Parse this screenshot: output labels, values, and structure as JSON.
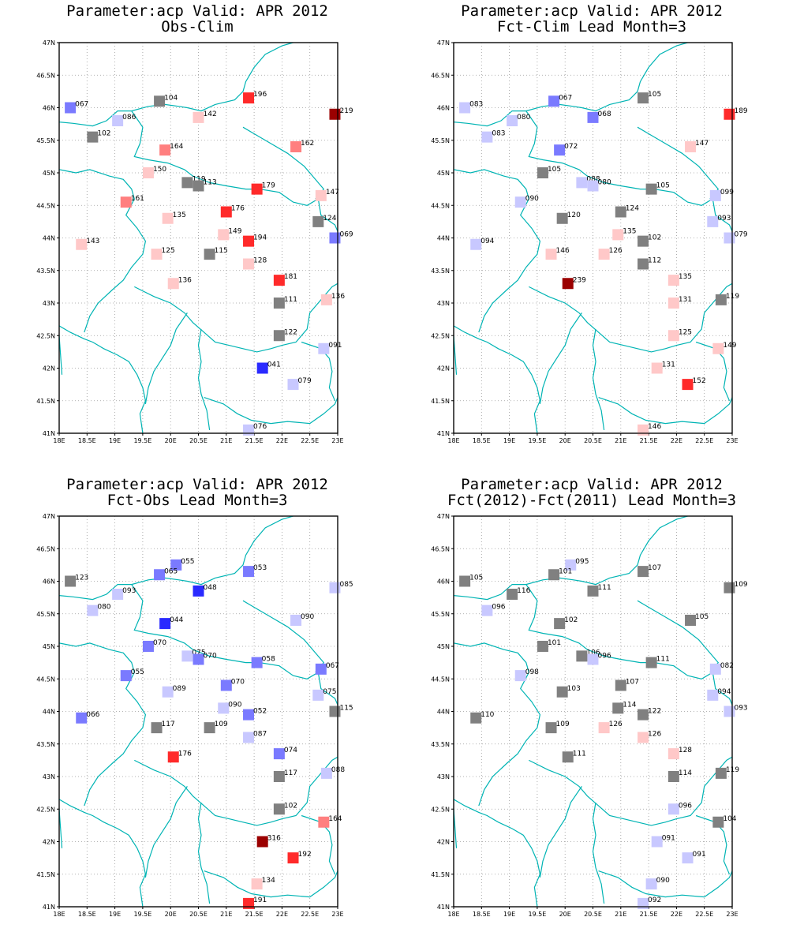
{
  "map_axes": {
    "lon_labels": [
      "18E",
      "18.5E",
      "19E",
      "19.5E",
      "20E",
      "20.5E",
      "21E",
      "21.5E",
      "22E",
      "22.5E",
      "23E"
    ],
    "lat_labels": [
      "41N",
      "41.5N",
      "42N",
      "42.5N",
      "43N",
      "43.5N",
      "44N",
      "44.5N",
      "45N",
      "45.5N",
      "46N",
      "46.5N",
      "47N"
    ],
    "lon_range": [
      18,
      23
    ],
    "lat_range": [
      41,
      47
    ],
    "grid": "dotted"
  },
  "colors": {
    "very_high": "#9b0000",
    "high": "#ff2a2a",
    "mid_high": "#ff7f7f",
    "low_high": "#ffc8c8",
    "neutral": "#808080",
    "low_low": "#c8c8ff",
    "mid_low": "#7a7aff",
    "low": "#2a2aff",
    "coast": "#00b4b4"
  },
  "panels": [
    {
      "title1": "Parameter:acp Valid: APR 2012",
      "title2": "Obs-Clim",
      "stations": [
        {
          "lon": 18.2,
          "lat": 46.0,
          "label": "067",
          "c": "mid_low"
        },
        {
          "lon": 19.8,
          "lat": 46.1,
          "label": "104",
          "c": "neutral"
        },
        {
          "lon": 21.4,
          "lat": 46.15,
          "label": "196",
          "c": "high"
        },
        {
          "lon": 22.95,
          "lat": 45.9,
          "label": "219",
          "c": "very_high"
        },
        {
          "lon": 19.05,
          "lat": 45.8,
          "label": "086",
          "c": "low_low"
        },
        {
          "lon": 20.5,
          "lat": 45.85,
          "label": "142",
          "c": "low_high"
        },
        {
          "lon": 18.6,
          "lat": 45.55,
          "label": "102",
          "c": "neutral"
        },
        {
          "lon": 19.9,
          "lat": 45.35,
          "label": "164",
          "c": "mid_high"
        },
        {
          "lon": 22.25,
          "lat": 45.4,
          "label": "162",
          "c": "mid_high"
        },
        {
          "lon": 19.6,
          "lat": 45.0,
          "label": "150",
          "c": "low_high"
        },
        {
          "lon": 20.3,
          "lat": 44.85,
          "label": "119",
          "c": "neutral"
        },
        {
          "lon": 20.5,
          "lat": 44.8,
          "label": "113",
          "c": "neutral"
        },
        {
          "lon": 21.55,
          "lat": 44.75,
          "label": "179",
          "c": "high"
        },
        {
          "lon": 22.7,
          "lat": 44.65,
          "label": "147",
          "c": "low_high"
        },
        {
          "lon": 19.2,
          "lat": 44.55,
          "label": "161",
          "c": "mid_high"
        },
        {
          "lon": 19.95,
          "lat": 44.3,
          "label": "135",
          "c": "low_high"
        },
        {
          "lon": 21.0,
          "lat": 44.4,
          "label": "176",
          "c": "high"
        },
        {
          "lon": 22.65,
          "lat": 44.25,
          "label": "124",
          "c": "neutral"
        },
        {
          "lon": 22.95,
          "lat": 44.0,
          "label": "069",
          "c": "mid_low"
        },
        {
          "lon": 20.95,
          "lat": 44.05,
          "label": "149",
          "c": "low_high"
        },
        {
          "lon": 21.4,
          "lat": 43.95,
          "label": "194",
          "c": "high"
        },
        {
          "lon": 18.4,
          "lat": 43.9,
          "label": "143",
          "c": "low_high"
        },
        {
          "lon": 19.75,
          "lat": 43.75,
          "label": "125",
          "c": "low_high"
        },
        {
          "lon": 20.7,
          "lat": 43.75,
          "label": "115",
          "c": "neutral"
        },
        {
          "lon": 21.4,
          "lat": 43.6,
          "label": "128",
          "c": "low_high"
        },
        {
          "lon": 20.05,
          "lat": 43.3,
          "label": "136",
          "c": "low_high"
        },
        {
          "lon": 21.95,
          "lat": 43.35,
          "label": "181",
          "c": "high"
        },
        {
          "lon": 21.95,
          "lat": 43.0,
          "label": "111",
          "c": "neutral"
        },
        {
          "lon": 22.8,
          "lat": 43.05,
          "label": "136",
          "c": "low_high"
        },
        {
          "lon": 21.95,
          "lat": 42.5,
          "label": "122",
          "c": "neutral"
        },
        {
          "lon": 22.75,
          "lat": 42.3,
          "label": "091",
          "c": "low_low"
        },
        {
          "lon": 21.65,
          "lat": 42.0,
          "label": "041",
          "c": "low"
        },
        {
          "lon": 22.2,
          "lat": 41.75,
          "label": "079",
          "c": "low_low"
        },
        {
          "lon": 21.4,
          "lat": 41.05,
          "label": "076",
          "c": "low_low"
        }
      ]
    },
    {
      "title1": "Parameter:acp Valid: APR 2012",
      "title2": "Fct-Clim Lead Month=3",
      "stations": [
        {
          "lon": 18.2,
          "lat": 46.0,
          "label": "083",
          "c": "low_low"
        },
        {
          "lon": 19.8,
          "lat": 46.1,
          "label": "067",
          "c": "mid_low"
        },
        {
          "lon": 21.4,
          "lat": 46.15,
          "label": "105",
          "c": "neutral"
        },
        {
          "lon": 22.95,
          "lat": 45.9,
          "label": "189",
          "c": "high"
        },
        {
          "lon": 19.05,
          "lat": 45.8,
          "label": "080",
          "c": "low_low"
        },
        {
          "lon": 20.5,
          "lat": 45.85,
          "label": "068",
          "c": "mid_low"
        },
        {
          "lon": 18.6,
          "lat": 45.55,
          "label": "083",
          "c": "low_low"
        },
        {
          "lon": 19.9,
          "lat": 45.35,
          "label": "072",
          "c": "mid_low"
        },
        {
          "lon": 22.25,
          "lat": 45.4,
          "label": "147",
          "c": "low_high"
        },
        {
          "lon": 19.6,
          "lat": 45.0,
          "label": "105",
          "c": "neutral"
        },
        {
          "lon": 20.3,
          "lat": 44.85,
          "label": "088",
          "c": "low_low"
        },
        {
          "lon": 20.5,
          "lat": 44.8,
          "label": "080",
          "c": "low_low"
        },
        {
          "lon": 21.55,
          "lat": 44.75,
          "label": "105",
          "c": "neutral"
        },
        {
          "lon": 22.7,
          "lat": 44.65,
          "label": "099",
          "c": "low_low"
        },
        {
          "lon": 19.2,
          "lat": 44.55,
          "label": "090",
          "c": "low_low"
        },
        {
          "lon": 19.95,
          "lat": 44.3,
          "label": "120",
          "c": "neutral"
        },
        {
          "lon": 21.0,
          "lat": 44.4,
          "label": "124",
          "c": "neutral"
        },
        {
          "lon": 22.65,
          "lat": 44.25,
          "label": "093",
          "c": "low_low"
        },
        {
          "lon": 22.95,
          "lat": 44.0,
          "label": "079",
          "c": "low_low"
        },
        {
          "lon": 20.95,
          "lat": 44.05,
          "label": "135",
          "c": "low_high"
        },
        {
          "lon": 21.4,
          "lat": 43.95,
          "label": "102",
          "c": "neutral"
        },
        {
          "lon": 18.4,
          "lat": 43.9,
          "label": "094",
          "c": "low_low"
        },
        {
          "lon": 19.75,
          "lat": 43.75,
          "label": "146",
          "c": "low_high"
        },
        {
          "lon": 20.7,
          "lat": 43.75,
          "label": "126",
          "c": "low_high"
        },
        {
          "lon": 21.4,
          "lat": 43.6,
          "label": "112",
          "c": "neutral"
        },
        {
          "lon": 20.05,
          "lat": 43.3,
          "label": "239",
          "c": "very_high"
        },
        {
          "lon": 21.95,
          "lat": 43.35,
          "label": "135",
          "c": "low_high"
        },
        {
          "lon": 21.95,
          "lat": 43.0,
          "label": "131",
          "c": "low_high"
        },
        {
          "lon": 22.8,
          "lat": 43.05,
          "label": "119",
          "c": "neutral"
        },
        {
          "lon": 21.95,
          "lat": 42.5,
          "label": "125",
          "c": "low_high"
        },
        {
          "lon": 22.75,
          "lat": 42.3,
          "label": "149",
          "c": "low_high"
        },
        {
          "lon": 21.65,
          "lat": 42.0,
          "label": "131",
          "c": "low_high"
        },
        {
          "lon": 22.2,
          "lat": 41.75,
          "label": "152",
          "c": "high"
        },
        {
          "lon": 21.4,
          "lat": 41.05,
          "label": "146",
          "c": "low_high"
        }
      ]
    },
    {
      "title1": "Parameter:acp Valid: APR 2012",
      "title2": "Fct-Obs Lead Month=3",
      "stations": [
        {
          "lon": 18.2,
          "lat": 46.0,
          "label": "123",
          "c": "neutral"
        },
        {
          "lon": 20.1,
          "lat": 46.25,
          "label": "055",
          "c": "mid_low"
        },
        {
          "lon": 19.8,
          "lat": 46.1,
          "label": "065",
          "c": "mid_low"
        },
        {
          "lon": 21.4,
          "lat": 46.15,
          "label": "053",
          "c": "mid_low"
        },
        {
          "lon": 22.95,
          "lat": 45.9,
          "label": "085",
          "c": "low_low"
        },
        {
          "lon": 19.05,
          "lat": 45.8,
          "label": "093",
          "c": "low_low"
        },
        {
          "lon": 20.5,
          "lat": 45.85,
          "label": "048",
          "c": "low"
        },
        {
          "lon": 18.6,
          "lat": 45.55,
          "label": "080",
          "c": "low_low"
        },
        {
          "lon": 19.9,
          "lat": 45.35,
          "label": "044",
          "c": "low"
        },
        {
          "lon": 22.25,
          "lat": 45.4,
          "label": "090",
          "c": "low_low"
        },
        {
          "lon": 19.6,
          "lat": 45.0,
          "label": "070",
          "c": "mid_low"
        },
        {
          "lon": 20.3,
          "lat": 44.85,
          "label": "075",
          "c": "low_low"
        },
        {
          "lon": 20.5,
          "lat": 44.8,
          "label": "070",
          "c": "mid_low"
        },
        {
          "lon": 21.55,
          "lat": 44.75,
          "label": "058",
          "c": "mid_low"
        },
        {
          "lon": 22.7,
          "lat": 44.65,
          "label": "067",
          "c": "mid_low"
        },
        {
          "lon": 19.2,
          "lat": 44.55,
          "label": "055",
          "c": "mid_low"
        },
        {
          "lon": 19.95,
          "lat": 44.3,
          "label": "089",
          "c": "low_low"
        },
        {
          "lon": 21.0,
          "lat": 44.4,
          "label": "070",
          "c": "mid_low"
        },
        {
          "lon": 22.65,
          "lat": 44.25,
          "label": "075",
          "c": "low_low"
        },
        {
          "lon": 22.95,
          "lat": 44.0,
          "label": "115",
          "c": "neutral"
        },
        {
          "lon": 20.95,
          "lat": 44.05,
          "label": "090",
          "c": "low_low"
        },
        {
          "lon": 21.4,
          "lat": 43.95,
          "label": "052",
          "c": "mid_low"
        },
        {
          "lon": 18.4,
          "lat": 43.9,
          "label": "066",
          "c": "mid_low"
        },
        {
          "lon": 19.75,
          "lat": 43.75,
          "label": "117",
          "c": "neutral"
        },
        {
          "lon": 20.7,
          "lat": 43.75,
          "label": "109",
          "c": "neutral"
        },
        {
          "lon": 21.4,
          "lat": 43.6,
          "label": "087",
          "c": "low_low"
        },
        {
          "lon": 20.05,
          "lat": 43.3,
          "label": "176",
          "c": "high"
        },
        {
          "lon": 21.95,
          "lat": 43.35,
          "label": "074",
          "c": "mid_low"
        },
        {
          "lon": 21.95,
          "lat": 43.0,
          "label": "117",
          "c": "neutral"
        },
        {
          "lon": 22.8,
          "lat": 43.05,
          "label": "088",
          "c": "low_low"
        },
        {
          "lon": 21.95,
          "lat": 42.5,
          "label": "102",
          "c": "neutral"
        },
        {
          "lon": 22.75,
          "lat": 42.3,
          "label": "164",
          "c": "mid_high"
        },
        {
          "lon": 21.65,
          "lat": 42.0,
          "label": "316",
          "c": "very_high"
        },
        {
          "lon": 22.2,
          "lat": 41.75,
          "label": "192",
          "c": "high"
        },
        {
          "lon": 21.55,
          "lat": 41.35,
          "label": "134",
          "c": "low_high"
        },
        {
          "lon": 21.4,
          "lat": 41.05,
          "label": "191",
          "c": "high"
        }
      ]
    },
    {
      "title1": "Parameter:acp Valid: APR 2012",
      "title2": "Fct(2012)-Fct(2011) Lead Month=3",
      "stations": [
        {
          "lon": 18.2,
          "lat": 46.0,
          "label": "105",
          "c": "neutral"
        },
        {
          "lon": 20.1,
          "lat": 46.25,
          "label": "095",
          "c": "low_low"
        },
        {
          "lon": 19.8,
          "lat": 46.1,
          "label": "101",
          "c": "neutral"
        },
        {
          "lon": 21.4,
          "lat": 46.15,
          "label": "107",
          "c": "neutral"
        },
        {
          "lon": 22.95,
          "lat": 45.9,
          "label": "109",
          "c": "neutral"
        },
        {
          "lon": 19.05,
          "lat": 45.8,
          "label": "116",
          "c": "neutral"
        },
        {
          "lon": 20.5,
          "lat": 45.85,
          "label": "111",
          "c": "neutral"
        },
        {
          "lon": 18.6,
          "lat": 45.55,
          "label": "096",
          "c": "low_low"
        },
        {
          "lon": 19.9,
          "lat": 45.35,
          "label": "102",
          "c": "neutral"
        },
        {
          "lon": 22.25,
          "lat": 45.4,
          "label": "105",
          "c": "neutral"
        },
        {
          "lon": 19.6,
          "lat": 45.0,
          "label": "101",
          "c": "neutral"
        },
        {
          "lon": 20.3,
          "lat": 44.85,
          "label": "106",
          "c": "neutral"
        },
        {
          "lon": 20.5,
          "lat": 44.8,
          "label": "096",
          "c": "low_low"
        },
        {
          "lon": 21.55,
          "lat": 44.75,
          "label": "111",
          "c": "neutral"
        },
        {
          "lon": 22.7,
          "lat": 44.65,
          "label": "082",
          "c": "low_low"
        },
        {
          "lon": 19.2,
          "lat": 44.55,
          "label": "098",
          "c": "low_low"
        },
        {
          "lon": 19.95,
          "lat": 44.3,
          "label": "103",
          "c": "neutral"
        },
        {
          "lon": 21.0,
          "lat": 44.4,
          "label": "107",
          "c": "neutral"
        },
        {
          "lon": 22.65,
          "lat": 44.25,
          "label": "094",
          "c": "low_low"
        },
        {
          "lon": 22.95,
          "lat": 44.0,
          "label": "093",
          "c": "low_low"
        },
        {
          "lon": 20.95,
          "lat": 44.05,
          "label": "114",
          "c": "neutral"
        },
        {
          "lon": 21.4,
          "lat": 43.95,
          "label": "122",
          "c": "neutral"
        },
        {
          "lon": 18.4,
          "lat": 43.9,
          "label": "110",
          "c": "neutral"
        },
        {
          "lon": 19.75,
          "lat": 43.75,
          "label": "109",
          "c": "neutral"
        },
        {
          "lon": 20.7,
          "lat": 43.75,
          "label": "126",
          "c": "low_high"
        },
        {
          "lon": 21.4,
          "lat": 43.6,
          "label": "126",
          "c": "low_high"
        },
        {
          "lon": 20.05,
          "lat": 43.3,
          "label": "111",
          "c": "neutral"
        },
        {
          "lon": 21.95,
          "lat": 43.35,
          "label": "128",
          "c": "low_high"
        },
        {
          "lon": 21.95,
          "lat": 43.0,
          "label": "114",
          "c": "neutral"
        },
        {
          "lon": 22.8,
          "lat": 43.05,
          "label": "119",
          "c": "neutral"
        },
        {
          "lon": 21.95,
          "lat": 42.5,
          "label": "096",
          "c": "low_low"
        },
        {
          "lon": 22.75,
          "lat": 42.3,
          "label": "104",
          "c": "neutral"
        },
        {
          "lon": 21.65,
          "lat": 42.0,
          "label": "091",
          "c": "low_low"
        },
        {
          "lon": 22.2,
          "lat": 41.75,
          "label": "091",
          "c": "low_low"
        },
        {
          "lon": 21.55,
          "lat": 41.35,
          "label": "090",
          "c": "low_low"
        },
        {
          "lon": 21.4,
          "lat": 41.05,
          "label": "092",
          "c": "low_low"
        }
      ]
    }
  ]
}
